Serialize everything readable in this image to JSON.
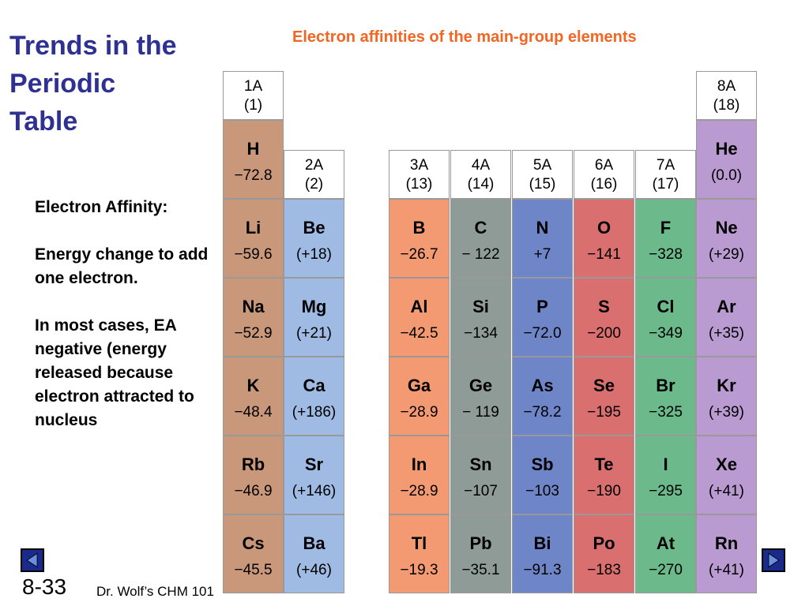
{
  "slide": {
    "title": [
      "Trends in the",
      "Periodic",
      "Table"
    ],
    "subtitle": "Electron affinities of the main-group elements",
    "body": [
      "Electron Affinity:",
      "Energy change to add one electron.",
      "In most cases, EA negative (energy released because electron attracted to nucleus"
    ],
    "page_number": "8-33",
    "footer": "Dr. Wolf’s CHM 101",
    "groups": [
      {
        "label": "1A",
        "number": "(1)",
        "color": "#c9977a",
        "elements": [
          {
            "symbol": "H",
            "value": "−72.8"
          },
          {
            "symbol": "Li",
            "value": "−59.6"
          },
          {
            "symbol": "Na",
            "value": "−52.9"
          },
          {
            "symbol": "K",
            "value": "−48.4"
          },
          {
            "symbol": "Rb",
            "value": "−46.9"
          },
          {
            "symbol": "Cs",
            "value": "−45.5"
          }
        ]
      },
      {
        "label": "2A",
        "number": "(2)",
        "color": "#9fbbe3",
        "elements": [
          {
            "symbol": "Be",
            "value": "(+18)"
          },
          {
            "symbol": "Mg",
            "value": "(+21)"
          },
          {
            "symbol": "Ca",
            "value": "(+186)"
          },
          {
            "symbol": "Sr",
            "value": "(+146)"
          },
          {
            "symbol": "Ba",
            "value": "(+46)"
          }
        ]
      },
      {
        "label": "3A",
        "number": "(13)",
        "color": "#f39a73",
        "elements": [
          {
            "symbol": "B",
            "value": "−26.7"
          },
          {
            "symbol": "Al",
            "value": "−42.5"
          },
          {
            "symbol": "Ga",
            "value": "−28.9"
          },
          {
            "symbol": "In",
            "value": "−28.9"
          },
          {
            "symbol": "Tl",
            "value": "−19.3"
          }
        ]
      },
      {
        "label": "4A",
        "number": "(14)",
        "color": "#8f9b97",
        "elements": [
          {
            "symbol": "C",
            "value": "− 122"
          },
          {
            "symbol": "Si",
            "value": "−134"
          },
          {
            "symbol": "Ge",
            "value": "− 119"
          },
          {
            "symbol": "Sn",
            "value": "−107"
          },
          {
            "symbol": "Pb",
            "value": "−35.1"
          }
        ]
      },
      {
        "label": "5A",
        "number": "(15)",
        "color": "#6e86c7",
        "elements": [
          {
            "symbol": "N",
            "value": "+7"
          },
          {
            "symbol": "P",
            "value": "−72.0"
          },
          {
            "symbol": "As",
            "value": "−78.2"
          },
          {
            "symbol": "Sb",
            "value": "−103"
          },
          {
            "symbol": "Bi",
            "value": "−91.3"
          }
        ]
      },
      {
        "label": "6A",
        "number": "(16)",
        "color": "#d96f6f",
        "elements": [
          {
            "symbol": "O",
            "value": "−141"
          },
          {
            "symbol": "S",
            "value": "−200"
          },
          {
            "symbol": "Se",
            "value": "−195"
          },
          {
            "symbol": "Te",
            "value": "−190"
          },
          {
            "symbol": "Po",
            "value": "−183"
          }
        ]
      },
      {
        "label": "7A",
        "number": "(17)",
        "color": "#6cb98b",
        "elements": [
          {
            "symbol": "F",
            "value": "−328"
          },
          {
            "symbol": "Cl",
            "value": "−349"
          },
          {
            "symbol": "Br",
            "value": "−325"
          },
          {
            "symbol": "I",
            "value": "−295"
          },
          {
            "symbol": "At",
            "value": "−270"
          }
        ]
      },
      {
        "label": "8A",
        "number": "(18)",
        "color": "#b99bd1",
        "elements": [
          {
            "symbol": "He",
            "value": "(0.0)"
          },
          {
            "symbol": "Ne",
            "value": "(+29)"
          },
          {
            "symbol": "Ar",
            "value": "(+35)"
          },
          {
            "symbol": "Kr",
            "value": "(+39)"
          },
          {
            "symbol": "Xe",
            "value": "(+41)"
          },
          {
            "symbol": "Rn",
            "value": "(+41)"
          }
        ]
      }
    ]
  }
}
